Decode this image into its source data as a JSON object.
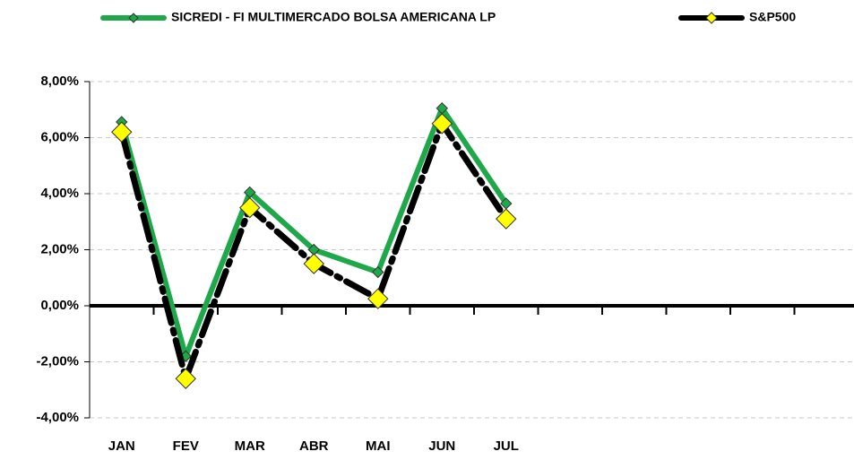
{
  "chart_data": {
    "type": "line",
    "categories": [
      "JAN",
      "FEV",
      "MAR",
      "ABR",
      "MAI",
      "JUN",
      "JUL",
      null,
      null,
      null,
      null,
      null
    ],
    "series": [
      {
        "name": "SICREDI - FI MULTIMERCADO BOLSA AMERICANA LP",
        "color": "#1fa84a",
        "marker_color": "#1fa84a",
        "values": [
          6.56,
          -1.8,
          4.05,
          2.0,
          1.2,
          7.05,
          3.65,
          null,
          null,
          null,
          null,
          null
        ]
      },
      {
        "name": "S&P500",
        "color": "#000000",
        "marker_color": "#ffff00",
        "values": [
          6.2,
          -2.6,
          3.5,
          1.5,
          0.25,
          6.5,
          3.1,
          null,
          null,
          null,
          null,
          null
        ]
      }
    ],
    "ylim": [
      -4,
      8
    ],
    "yticks": [
      {
        "value": -4,
        "label": "-4,00%"
      },
      {
        "value": -2,
        "label": "-2,00%"
      },
      {
        "value": 0,
        "label": "0,00%"
      },
      {
        "value": 2,
        "label": "2,00%"
      },
      {
        "value": 4,
        "label": "4,00%"
      },
      {
        "value": 6,
        "label": "6,00%"
      },
      {
        "value": 8,
        "label": "8,00%"
      }
    ],
    "grid": true,
    "legend": "top"
  }
}
